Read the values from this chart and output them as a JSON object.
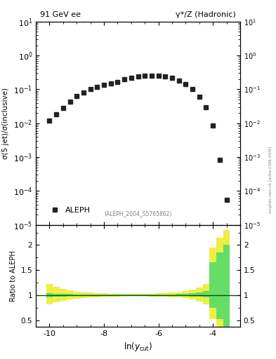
{
  "title_left": "91 GeV ee",
  "title_right": "γ*/Z (Hadronic)",
  "ylabel_main": "σ(5 jet)/σ(inclusive)",
  "ylabel_ratio": "Ratio to ALEPH",
  "xlabel": "ln(y_{cut})",
  "legend_label": "ALEPH",
  "annotation": "(ALEPH_2004_S5765862)",
  "sidebar_text": "mcplots.cern.ch [arXiv:1306.3436]",
  "xlim": [
    -10.5,
    -3.0
  ],
  "ylim_ratio": [
    0.37,
    2.4
  ],
  "data_x": [
    -10.0,
    -9.75,
    -9.5,
    -9.25,
    -9.0,
    -8.75,
    -8.5,
    -8.25,
    -8.0,
    -7.75,
    -7.5,
    -7.25,
    -7.0,
    -6.75,
    -6.5,
    -6.25,
    -6.0,
    -5.75,
    -5.5,
    -5.25,
    -5.0,
    -4.75,
    -4.5,
    -4.25,
    -4.0,
    -3.75,
    -3.5
  ],
  "data_y": [
    0.012,
    0.018,
    0.028,
    0.043,
    0.062,
    0.082,
    0.1,
    0.118,
    0.135,
    0.152,
    0.168,
    0.195,
    0.215,
    0.235,
    0.248,
    0.258,
    0.258,
    0.245,
    0.22,
    0.185,
    0.145,
    0.1,
    0.06,
    0.03,
    0.0085,
    0.00085,
    5.5e-05
  ],
  "marker_color": "#222222",
  "marker_size": 4.5,
  "green_band_x": [
    -10.0,
    -9.75,
    -9.5,
    -9.25,
    -9.0,
    -8.75,
    -8.5,
    -8.25,
    -8.0,
    -7.75,
    -7.5,
    -7.25,
    -7.0,
    -6.75,
    -6.5,
    -6.25,
    -6.0,
    -5.75,
    -5.5,
    -5.25,
    -5.0,
    -4.75,
    -4.5,
    -4.25,
    -4.0,
    -3.75,
    -3.5
  ],
  "green_band_lo": [
    0.96,
    0.97,
    0.975,
    0.98,
    0.983,
    0.985,
    0.988,
    0.99,
    0.99,
    0.992,
    0.993,
    0.993,
    0.993,
    0.993,
    0.993,
    0.992,
    0.99,
    0.988,
    0.985,
    0.983,
    0.98,
    0.975,
    0.965,
    0.95,
    0.75,
    0.52,
    0.35
  ],
  "green_band_hi": [
    1.04,
    1.03,
    1.025,
    1.02,
    1.017,
    1.015,
    1.013,
    1.01,
    1.01,
    1.008,
    1.007,
    1.007,
    1.007,
    1.007,
    1.008,
    1.01,
    1.012,
    1.015,
    1.018,
    1.022,
    1.028,
    1.038,
    1.055,
    1.08,
    1.65,
    1.85,
    2.0
  ],
  "yellow_band_lo": [
    0.82,
    0.86,
    0.89,
    0.91,
    0.93,
    0.945,
    0.955,
    0.963,
    0.968,
    0.973,
    0.977,
    0.978,
    0.979,
    0.979,
    0.978,
    0.977,
    0.974,
    0.97,
    0.963,
    0.953,
    0.94,
    0.915,
    0.875,
    0.815,
    0.52,
    0.35,
    0.22
  ],
  "yellow_band_hi": [
    1.22,
    1.16,
    1.12,
    1.095,
    1.075,
    1.06,
    1.05,
    1.042,
    1.038,
    1.033,
    1.028,
    1.027,
    1.027,
    1.027,
    1.028,
    1.03,
    1.034,
    1.04,
    1.048,
    1.06,
    1.076,
    1.105,
    1.155,
    1.225,
    1.95,
    2.15,
    2.3
  ],
  "green_color": "#66dd66",
  "yellow_color": "#eeee44",
  "ratio_line_color": "#005500",
  "bg_color": "#ffffff"
}
